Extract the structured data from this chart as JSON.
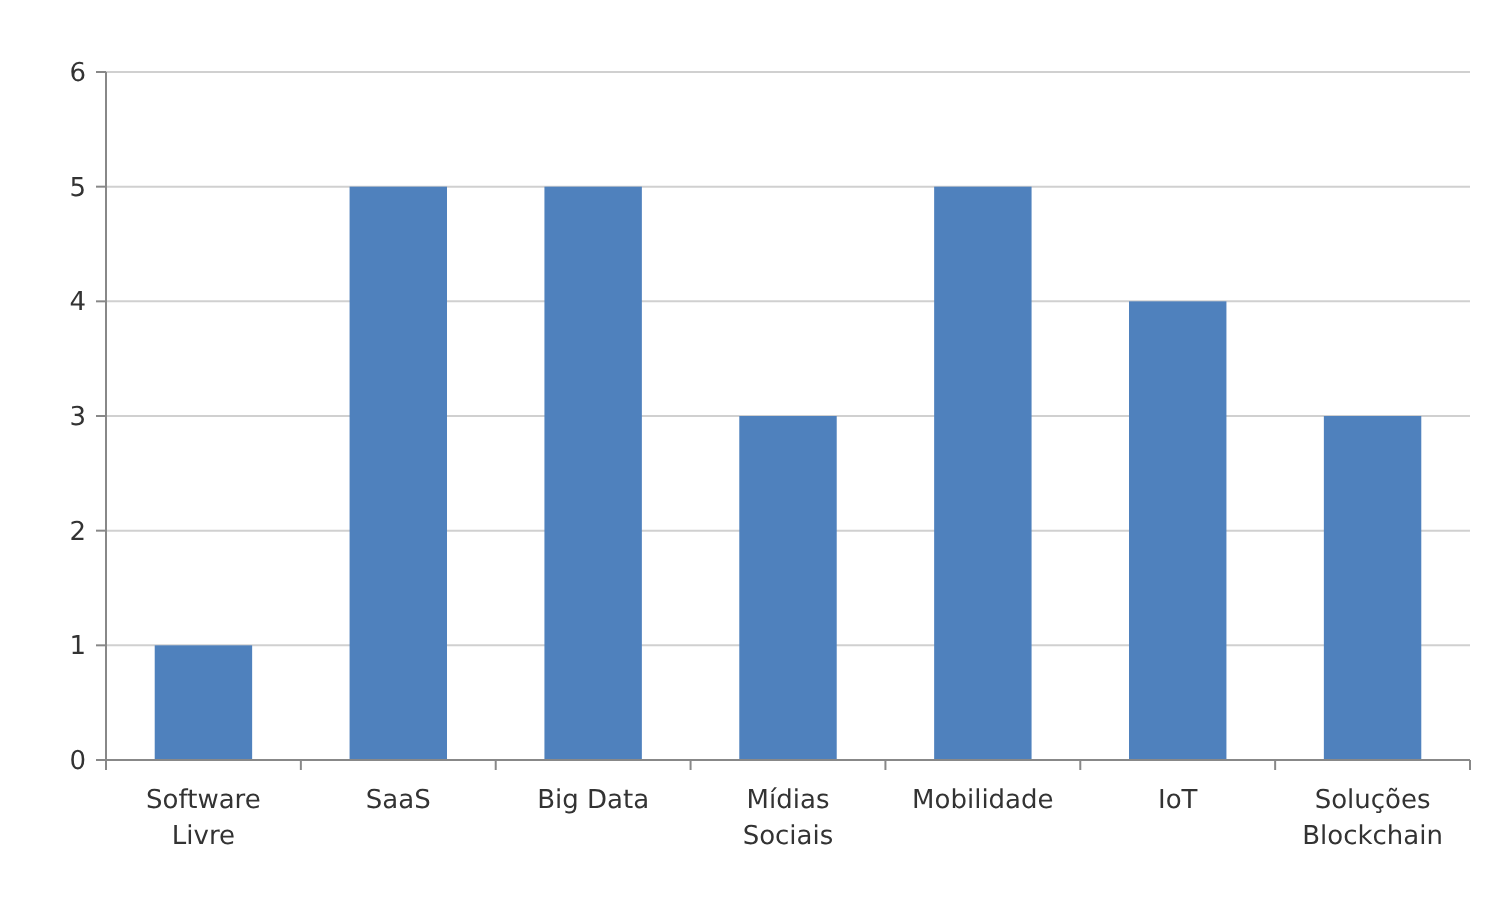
{
  "chart_data": {
    "type": "bar",
    "categories": [
      "Software Livre",
      "SaaS",
      "Big Data",
      "Mídias Sociais",
      "Mobilidade",
      "IoT",
      "Soluções Blockchain"
    ],
    "values": [
      1,
      5,
      5,
      3,
      5,
      4,
      3
    ],
    "color": "#4f81bd",
    "ylim": [
      0,
      6
    ],
    "yticks": [
      0,
      1,
      2,
      3,
      4,
      5,
      6
    ],
    "grid": "y"
  }
}
